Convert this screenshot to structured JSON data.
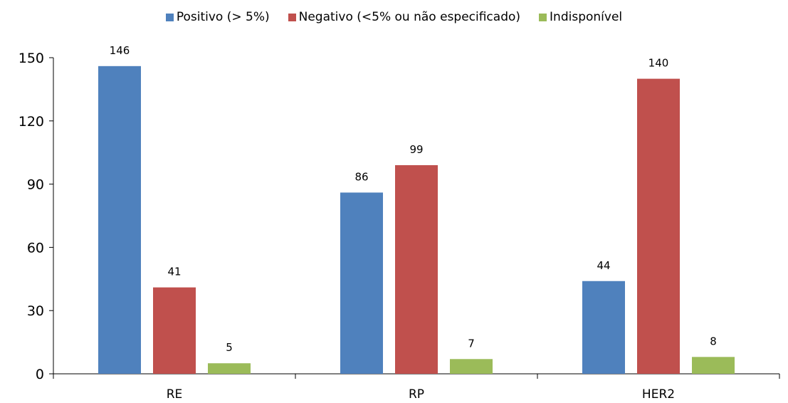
{
  "chart_data": {
    "type": "bar",
    "categories": [
      "RE",
      "RP",
      "HER2"
    ],
    "series": [
      {
        "name": "Positivo (> 5%)",
        "color": "#4F81BD",
        "values": [
          146,
          86,
          44
        ]
      },
      {
        "name": "Negativo (<5% ou não especificado)",
        "color": "#C0504D",
        "values": [
          41,
          99,
          140
        ]
      },
      {
        "name": "Indisponível",
        "color": "#9BBB59",
        "values": [
          5,
          7,
          8
        ]
      }
    ],
    "ylim": [
      0,
      150
    ],
    "yticks": [
      0,
      30,
      60,
      90,
      120,
      150
    ],
    "legend_position": "top",
    "grid": false,
    "data_labels": true
  }
}
